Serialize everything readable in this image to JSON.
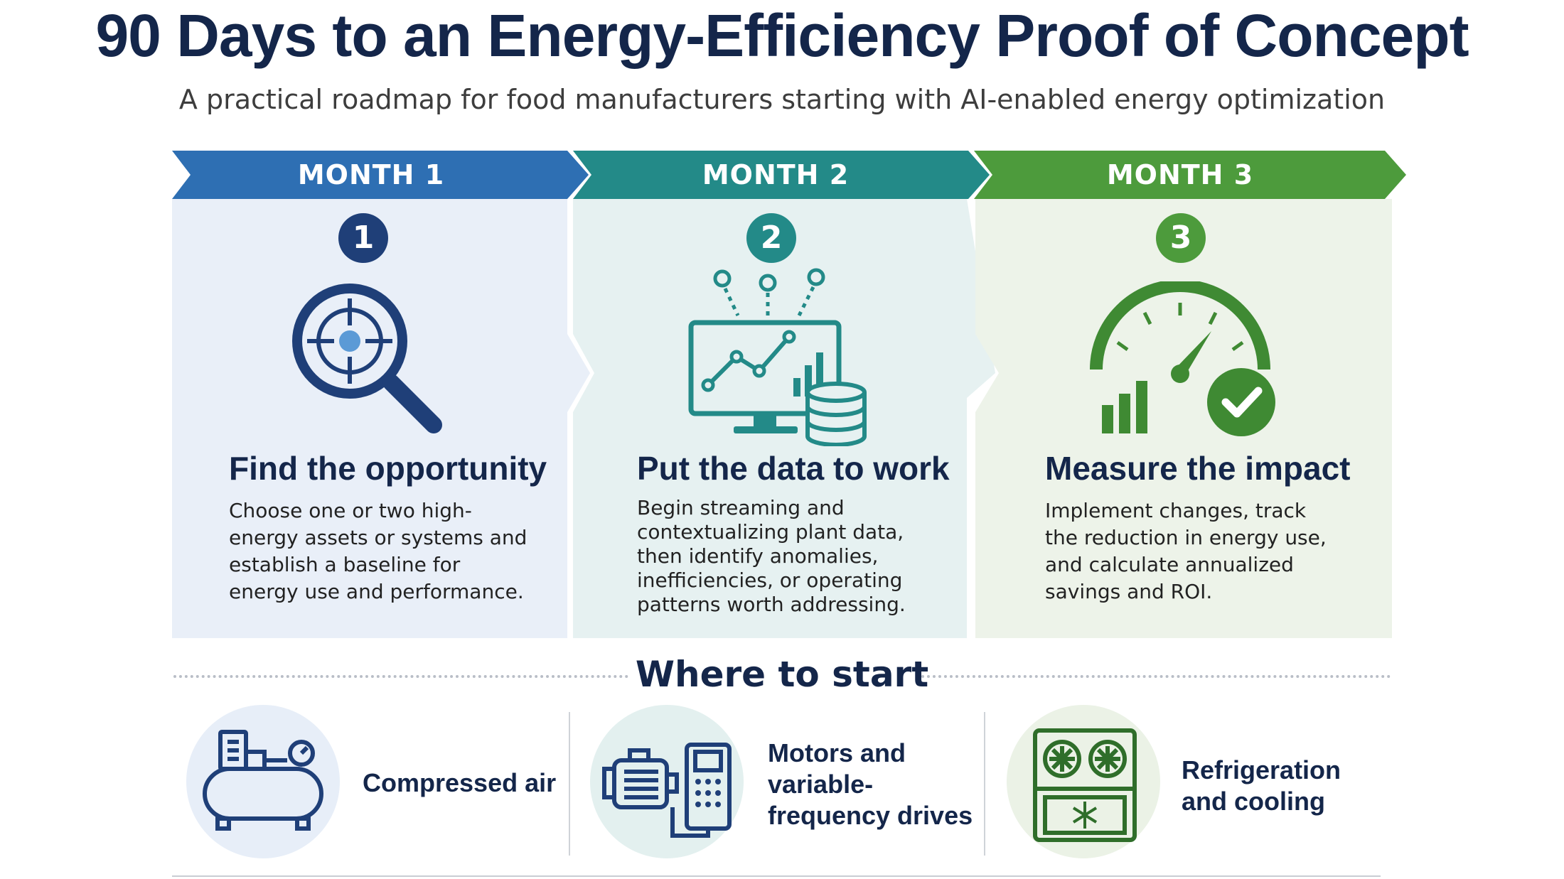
{
  "header": {
    "title": "90 Days to an Energy-Efficiency Proof of Concept",
    "subtitle": "A practical roadmap for food manufacturers starting with AI-enabled energy optimization"
  },
  "colors": {
    "month1": "#2e6fb3",
    "month2": "#238a88",
    "month3": "#4d9b3c",
    "navy": "#14264a"
  },
  "months": [
    {
      "label": "MONTH 1",
      "number": "1",
      "icon": "magnifier-target-icon",
      "title": "Find the opportunity",
      "text": "Choose one or two high-energy assets or systems and establish a baseline for energy use and performance."
    },
    {
      "label": "MONTH 2",
      "number": "2",
      "icon": "monitor-data-icon",
      "title": "Put the data to work",
      "text": "Begin streaming and contextualizing plant data, then identify anomalies, inefficiencies, or operating patterns worth addressing."
    },
    {
      "label": "MONTH 3",
      "number": "3",
      "icon": "gauge-check-icon",
      "title": "Measure the impact",
      "text": "Implement changes, track the reduction in energy use, and calculate annualized savings and ROI."
    }
  ],
  "where_to_start": {
    "title": "Where to start",
    "items": [
      {
        "label": "Compressed air",
        "icon": "air-compressor-icon"
      },
      {
        "label": "Motors and variable-frequency drives",
        "icon": "motor-vfd-icon"
      },
      {
        "label": "Refrigeration and cooling",
        "icon": "refrigeration-unit-icon"
      }
    ]
  }
}
